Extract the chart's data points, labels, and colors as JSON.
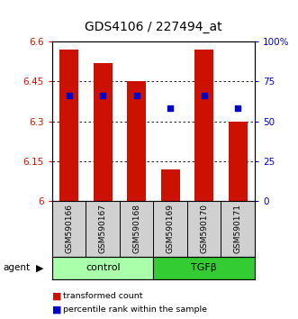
{
  "title": "GDS4106 / 227494_at",
  "samples": [
    "GSM590166",
    "GSM590167",
    "GSM590168",
    "GSM590169",
    "GSM590170",
    "GSM590171"
  ],
  "bar_values": [
    6.57,
    6.52,
    6.45,
    6.12,
    6.57,
    6.3
  ],
  "bar_bottom": 6.0,
  "percentile_values": [
    66,
    66,
    66,
    58,
    66,
    58
  ],
  "bar_color": "#cc1100",
  "dot_color": "#0000cc",
  "ylim_left": [
    6.0,
    6.6
  ],
  "ylim_right": [
    0,
    100
  ],
  "yticks_left": [
    6.0,
    6.15,
    6.3,
    6.45,
    6.6
  ],
  "ytick_labels_left": [
    "6",
    "6.15",
    "6.3",
    "6.45",
    "6.6"
  ],
  "yticks_right": [
    0,
    25,
    50,
    75,
    100
  ],
  "ytick_labels_right": [
    "0",
    "25",
    "50",
    "75",
    "100%"
  ],
  "groups": [
    {
      "label": "control",
      "indices": [
        0,
        1,
        2
      ],
      "color": "#aaffaa"
    },
    {
      "label": "TGFβ",
      "indices": [
        3,
        4,
        5
      ],
      "color": "#33cc33"
    }
  ],
  "agent_label": "agent",
  "legend": [
    {
      "label": "transformed count",
      "color": "#cc1100"
    },
    {
      "label": "percentile rank within the sample",
      "color": "#0000cc"
    }
  ]
}
